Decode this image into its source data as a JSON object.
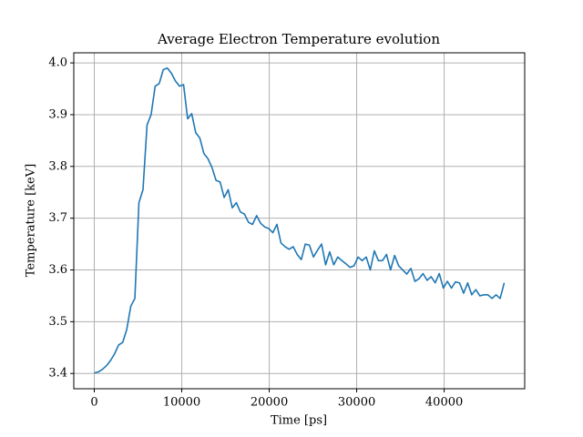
{
  "chart_data": {
    "type": "line",
    "title": "Average Electron Temperature evolution",
    "x_label": "Time [ps]",
    "y_label": "Temperature [keV]",
    "x": [
      0,
      464,
      928,
      1392,
      1856,
      2320,
      2784,
      3248,
      3712,
      4176,
      4640,
      5104,
      5568,
      6032,
      6496,
      6960,
      7424,
      7888,
      8352,
      8816,
      9280,
      9744,
      10208,
      10672,
      11136,
      11600,
      12064,
      12528,
      12992,
      13456,
      13920,
      14384,
      14848,
      15312,
      15776,
      16240,
      16704,
      17168,
      17632,
      18096,
      18560,
      19024,
      19488,
      19952,
      20416,
      20880,
      21344,
      21808,
      22272,
      22736,
      23200,
      23664,
      24128,
      24592,
      25056,
      25520,
      25984,
      26448,
      26912,
      27376,
      27840,
      28304,
      28768,
      29232,
      29696,
      30160,
      30624,
      31088,
      31552,
      32016,
      32480,
      32944,
      33408,
      33872,
      34336,
      34800,
      35264,
      35728,
      36192,
      36656,
      37120,
      37584,
      38048,
      38512,
      38976,
      39440,
      39904,
      40368,
      40832,
      41296,
      41760,
      42224,
      42688,
      43152,
      43616,
      44080,
      44544,
      45008,
      45472,
      45936,
      46400,
      46864
    ],
    "series": [
      {
        "name": "Average Electron Temperature",
        "color": "#1f77b4",
        "values": [
          3.401,
          3.403,
          3.408,
          3.415,
          3.425,
          3.438,
          3.455,
          3.46,
          3.485,
          3.53,
          3.545,
          3.73,
          3.755,
          3.88,
          3.9,
          3.955,
          3.96,
          3.987,
          3.99,
          3.98,
          3.965,
          3.955,
          3.958,
          3.892,
          3.902,
          3.865,
          3.855,
          3.825,
          3.815,
          3.798,
          3.773,
          3.77,
          3.74,
          3.755,
          3.72,
          3.73,
          3.712,
          3.708,
          3.692,
          3.688,
          3.705,
          3.69,
          3.683,
          3.68,
          3.672,
          3.688,
          3.652,
          3.645,
          3.64,
          3.645,
          3.63,
          3.62,
          3.65,
          3.648,
          3.625,
          3.638,
          3.65,
          3.61,
          3.635,
          3.61,
          3.625,
          3.618,
          3.612,
          3.605,
          3.608,
          3.625,
          3.618,
          3.625,
          3.6,
          3.637,
          3.618,
          3.618,
          3.63,
          3.6,
          3.628,
          3.608,
          3.6,
          3.592,
          3.603,
          3.578,
          3.583,
          3.593,
          3.58,
          3.587,
          3.575,
          3.593,
          3.565,
          3.578,
          3.565,
          3.577,
          3.575,
          3.555,
          3.575,
          3.552,
          3.562,
          3.55,
          3.552,
          3.552,
          3.545,
          3.552,
          3.545,
          3.575
        ]
      }
    ],
    "xlim": [
      -2343,
      49207
    ],
    "ylim": [
      3.3705,
      4.0195
    ],
    "xticks": [
      0,
      10000,
      20000,
      30000,
      40000
    ],
    "yticks": [
      3.4,
      3.5,
      3.6,
      3.7,
      3.8,
      3.9,
      {
        "value": 4,
        "label": "4.0"
      }
    ],
    "grid": true
  }
}
